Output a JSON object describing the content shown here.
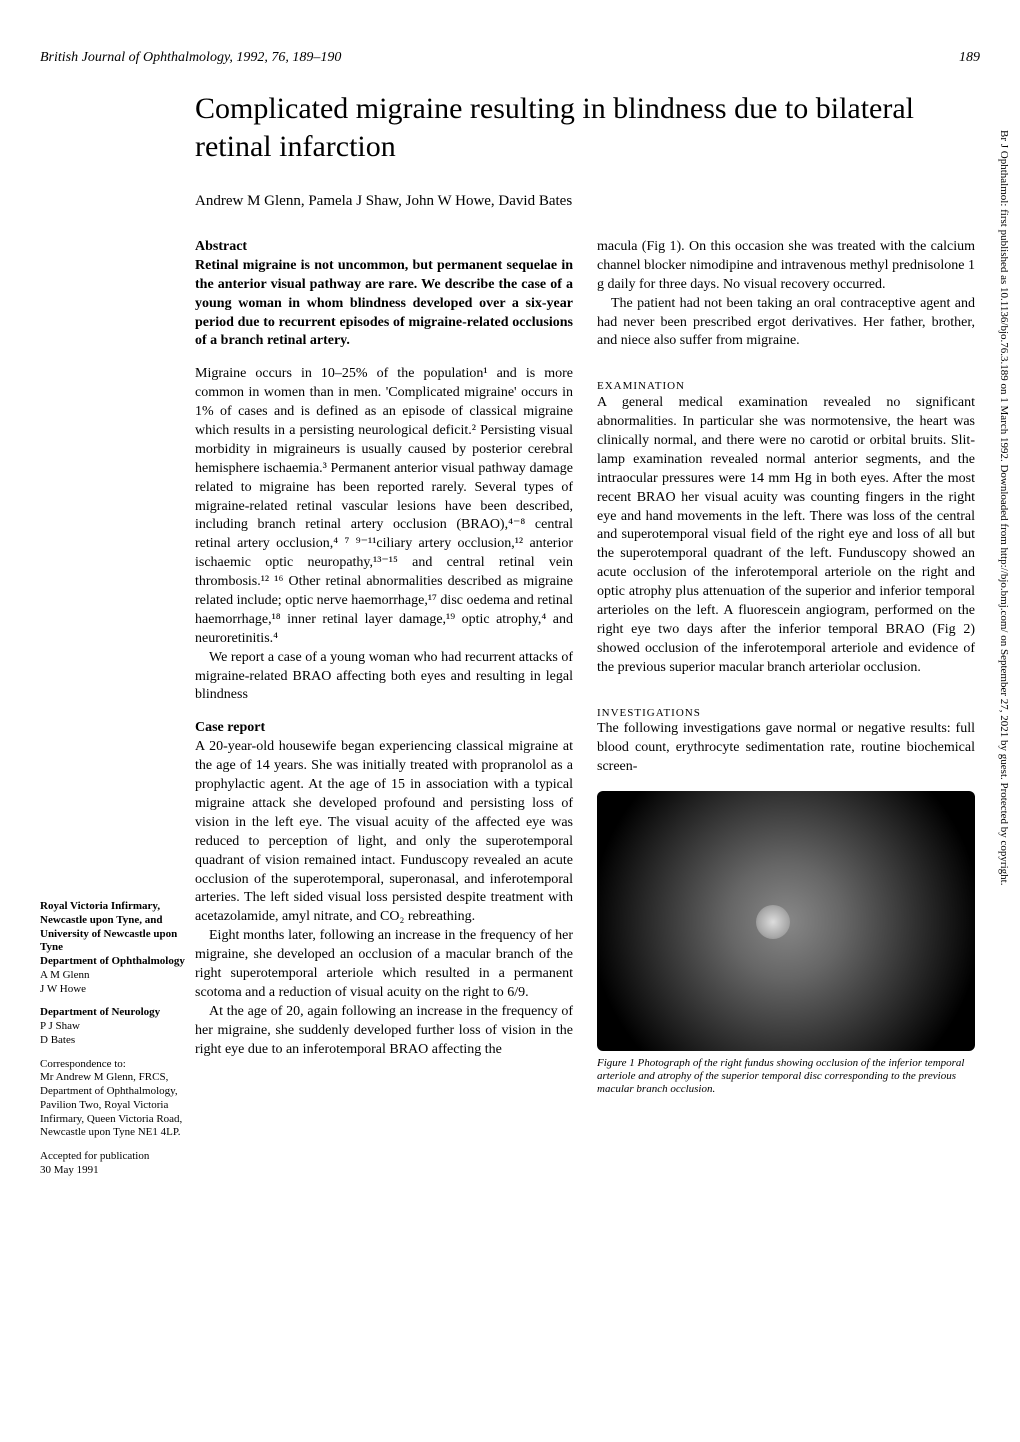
{
  "journal_header": "British Journal of Ophthalmology, 1992, 76, 189–190",
  "page_number": "189",
  "title": "Complicated migraine resulting in blindness due to bilateral retinal infarction",
  "authors": "Andrew M Glenn, Pamela J Shaw, John W Howe, David Bates",
  "abstract_label": "Abstract",
  "abstract_text": "Retinal migraine is not uncommon, but permanent sequelae in the anterior visual pathway are rare. We describe the case of a young woman in whom blindness developed over a six-year period due to recurrent episodes of migraine-related occlusions of a branch retinal artery.",
  "col1_para1": "Migraine occurs in 10–25% of the population¹ and is more common in women than in men. 'Complicated migraine' occurs in 1% of cases and is defined as an episode of classical migraine which results in a persisting neurological deficit.² Persisting visual morbidity in migraineurs is usually caused by posterior cerebral hemisphere ischaemia.³ Permanent anterior visual pathway damage related to migraine has been reported rarely. Several types of migraine-related retinal vascular lesions have been described, including branch retinal artery occlusion (BRAO),⁴⁻⁸ central retinal artery occlusion,⁴ ⁷ ⁹⁻¹¹ciliary artery occlusion,¹² anterior ischaemic optic neuropathy,¹³⁻¹⁵ and central retinal vein thrombosis.¹² ¹⁶ Other retinal abnormalities described as migraine related include; optic nerve haemorrhage,¹⁷ disc oedema and retinal haemorrhage,¹⁸ inner retinal layer damage,¹⁹ optic atrophy,⁴ and neuroretinitis.⁴",
  "col1_para2": "We report a case of a young woman who had recurrent attacks of migraine-related BRAO affecting both eyes and resulting in legal blindness",
  "case_report_label": "Case report",
  "col1_case1": "A 20-year-old housewife began experiencing classical migraine at the age of 14 years. She was initially treated with propranolol as a prophylactic agent. At the age of 15 in association with a typical migraine attack she developed profound and persisting loss of vision in the left eye. The visual acuity of the affected eye was reduced to perception of light, and only the superotemporal quadrant of vision remained intact. Funduscopy revealed an acute occlusion of the superotemporal, superonasal, and inferotemporal arteries. The left sided visual loss persisted despite treatment with acetazolamide, amyl nitrate, and CO₂ rebreathing.",
  "col1_case2": "Eight months later, following an increase in the frequency of her migraine, she developed an occlusion of a macular branch of the right superotemporal arteriole which resulted in a permanent scotoma and a reduction of visual acuity on the right to 6/9.",
  "col1_case3": "At the age of 20, again following an increase in the frequency of her migraine, she suddenly developed further loss of vision in the right eye due to an inferotemporal BRAO affecting the",
  "col2_para1": "macula (Fig 1). On this occasion she was treated with the calcium channel blocker nimodipine and intravenous methyl prednisolone 1 g daily for three days. No visual recovery occurred.",
  "col2_para2": "The patient had not been taking an oral contraceptive agent and had never been prescribed ergot derivatives. Her father, brother, and niece also suffer from migraine.",
  "exam_label": "EXAMINATION",
  "col2_exam": "A general medical examination revealed no significant abnormalities. In particular she was normotensive, the heart was clinically normal, and there were no carotid or orbital bruits. Slit-lamp examination revealed normal anterior segments, and the intraocular pressures were 14 mm Hg in both eyes. After the most recent BRAO her visual acuity was counting fingers in the right eye and hand movements in the left. There was loss of the central and superotemporal visual field of the right eye and loss of all but the superotemporal quadrant of the left. Funduscopy showed an acute occlusion of the inferotemporal arteriole on the right and optic atrophy plus attenuation of the superior and inferior temporal arterioles on the left. A fluorescein angiogram, performed on the right eye two days after the inferior temporal BRAO (Fig 2) showed occlusion of the inferotemporal arteriole and evidence of the previous superior macular branch arteriolar occlusion.",
  "invest_label": "INVESTIGATIONS",
  "col2_invest": "The following investigations gave normal or negative results: full blood count, erythrocyte sedimentation rate, routine biochemical screen-",
  "figure_caption": "Figure 1   Photograph of the right fundus showing occlusion of the inferior temporal arteriole and atrophy of the superior temporal disc corresponding to the previous macular branch occlusion.",
  "sidebar": {
    "aff1_title": "Royal Victoria Infirmary, Newcastle upon Tyne, and University of Newcastle upon Tyne",
    "dept1_title": "Department of Ophthalmology",
    "dept1_names": "A M Glenn\nJ W Howe",
    "dept2_title": "Department of Neurology",
    "dept2_names": "P J Shaw\nD Bates",
    "corr_label": "Correspondence to:",
    "corr_text": "Mr Andrew M Glenn, FRCS, Department of Ophthalmology, Pavilion Two, Royal Victoria Infirmary, Queen Victoria Road, Newcastle upon Tyne NE1 4LP.",
    "accepted": "Accepted for publication\n30 May 1991"
  },
  "side_text": "Br J Ophthalmol: first published as 10.1136/bjo.76.3.189 on 1 March 1992. Downloaded from http://bjo.bmj.com/ on September 27, 2021 by guest. Protected by copyright."
}
